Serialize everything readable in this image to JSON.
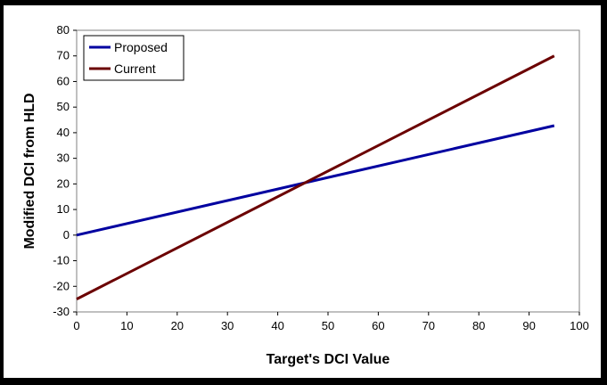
{
  "chart_data": {
    "type": "line",
    "xlabel": "Target's DCI Value",
    "ylabel": "Modified DCI from HLD",
    "xlim": [
      0,
      100
    ],
    "ylim": [
      -30,
      80
    ],
    "xticks": [
      0,
      10,
      20,
      30,
      40,
      50,
      60,
      70,
      80,
      90,
      100
    ],
    "yticks": [
      -30,
      -20,
      -10,
      0,
      10,
      20,
      30,
      40,
      50,
      60,
      70,
      80
    ],
    "grid": false,
    "legend_position": "top-left",
    "series": [
      {
        "name": "Proposed",
        "color": "#0000a0",
        "x": [
          0,
          95
        ],
        "y": [
          0,
          42.75
        ]
      },
      {
        "name": "Current",
        "color": "#6b0000",
        "x": [
          0,
          95
        ],
        "y": [
          -25,
          70
        ]
      }
    ]
  }
}
